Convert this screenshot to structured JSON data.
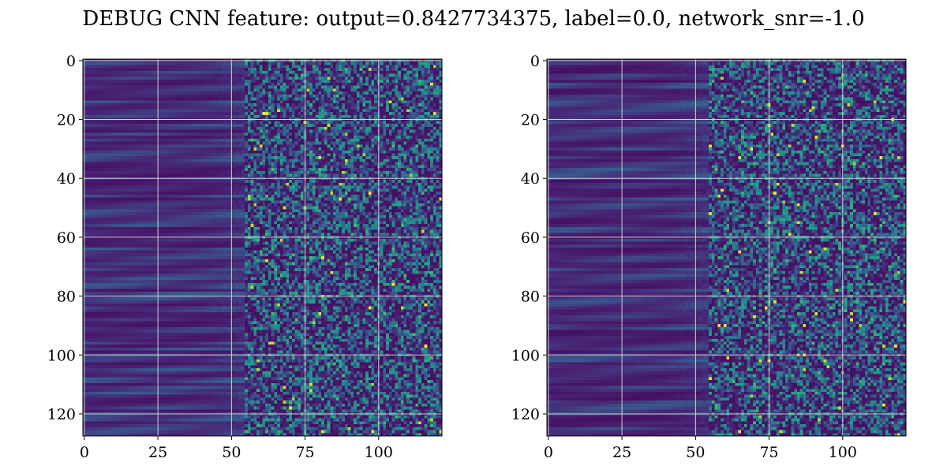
{
  "figure": {
    "title": "DEBUG CNN feature: output=0.8427734375, label=0.0, network_snr=-1.0"
  },
  "chart_data": [
    {
      "type": "heatmap",
      "panel": "left",
      "colormap": "viridis",
      "shape": [
        128,
        122
      ],
      "xlim": [
        -0.5,
        121.5
      ],
      "ylim": [
        127.5,
        -0.5
      ],
      "y_inverted": true,
      "grid": true,
      "xticks": [
        0,
        25,
        50,
        75,
        100
      ],
      "yticks": [
        0,
        20,
        40,
        60,
        80,
        100,
        120
      ],
      "pattern": {
        "smooth_columns_until": 55,
        "noisy_columns_from": 55,
        "random_seed": 17
      }
    },
    {
      "type": "heatmap",
      "panel": "right",
      "colormap": "viridis",
      "shape": [
        128,
        122
      ],
      "xlim": [
        -0.5,
        121.5
      ],
      "ylim": [
        127.5,
        -0.5
      ],
      "y_inverted": true,
      "grid": true,
      "xticks": [
        0,
        25,
        50,
        75,
        100
      ],
      "yticks": [
        0,
        20,
        40,
        60,
        80,
        100,
        120
      ],
      "pattern": {
        "smooth_columns_until": 55,
        "noisy_columns_from": 55,
        "random_seed": 91
      }
    }
  ],
  "colors": {
    "viridis_low": "#440154",
    "viridis_high": "#fde725",
    "grid": "#d0d0d0",
    "axis": "#000000"
  }
}
